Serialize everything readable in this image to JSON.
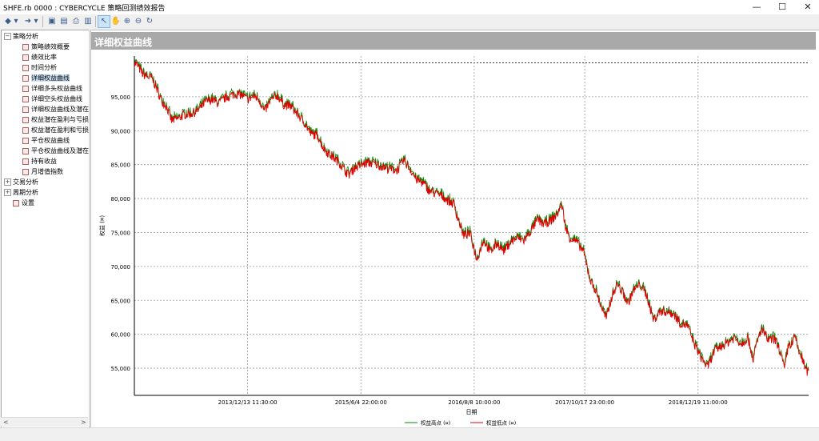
{
  "window": {
    "title": "SHFE.rb 0000 : CYBERCYCLE 策略回测绩效报告",
    "minimize": "—",
    "maximize": "☐",
    "close": "✕"
  },
  "toolbar": {
    "buttons": [
      {
        "name": "back-icon",
        "glyph": "◆"
      },
      {
        "name": "back-dropdown-icon",
        "glyph": "▾"
      },
      {
        "name": "forward-icon",
        "glyph": "➜"
      },
      {
        "name": "forward-dropdown-icon",
        "glyph": "▾"
      },
      {
        "name": "save-icon",
        "glyph": "▣"
      },
      {
        "name": "export-icon",
        "glyph": "▤"
      },
      {
        "name": "print-icon",
        "glyph": "⎙"
      },
      {
        "name": "window-icon",
        "glyph": "▥"
      },
      {
        "name": "pointer-icon",
        "glyph": "↖"
      },
      {
        "name": "pan-hand-icon",
        "glyph": "✋"
      },
      {
        "name": "zoom-in-icon",
        "glyph": "⊕"
      },
      {
        "name": "zoom-out-icon",
        "glyph": "⊖"
      },
      {
        "name": "refresh-icon",
        "glyph": "↻"
      }
    ]
  },
  "tree": {
    "groups": [
      {
        "label": "策略分析",
        "expand": "−",
        "children": [
          "策略绩效概要",
          "绩效比率",
          "时间分析",
          "详细权益曲线",
          "详细多头权益曲线",
          "详细空头权益曲线",
          "详细权益曲线及潜在",
          "权益潜在盈利与亏损",
          "权益潜在盈利和亏损",
          "平仓权益曲线",
          "平仓权益曲线及潜在",
          "持有收益",
          "月增值指数"
        ]
      },
      {
        "label": "交易分析",
        "expand": "+"
      },
      {
        "label": "周期分析",
        "expand": "+"
      }
    ],
    "settings_label": "设置",
    "selected": "详细权益曲线",
    "scroll_left": "<",
    "scroll_right": ">"
  },
  "panel": {
    "header": "详细权益曲线"
  },
  "chart_data": {
    "type": "line",
    "title": "",
    "xlabel": "日期",
    "ylabel": "权益 (¤)",
    "ylim": [
      51000,
      101000
    ],
    "y_ticks": [
      "55,000",
      "60,000",
      "65,000",
      "70,000",
      "75,000",
      "80,000",
      "85,000",
      "90,000",
      "95,000"
    ],
    "x_ticks": [
      "2013/12/13 11:30:00",
      "2015/6/4 22:00:00",
      "2016/8/8 10:00:00",
      "2017/10/17 23:00:00",
      "2018/12/19 11:00:00"
    ],
    "reference_line": 100000,
    "grid": true,
    "legend_position": "bottom-center",
    "colors": {
      "high": "#0a8a0a",
      "low": "#e00000"
    },
    "series": [
      {
        "name": "权益高点 (¤)",
        "color": "#0a8a0a"
      },
      {
        "name": "权益低点 (¤)",
        "color": "#e00000"
      }
    ],
    "x": [
      0,
      0.004,
      0.012,
      0.02,
      0.025,
      0.032,
      0.04,
      0.048,
      0.055,
      0.065,
      0.075,
      0.085,
      0.095,
      0.105,
      0.115,
      0.125,
      0.135,
      0.148,
      0.158,
      0.168,
      0.178,
      0.185,
      0.193,
      0.202,
      0.212,
      0.222,
      0.232,
      0.242,
      0.252,
      0.262,
      0.272,
      0.28,
      0.288,
      0.296,
      0.304,
      0.312,
      0.318,
      0.326,
      0.336,
      0.346,
      0.356,
      0.366,
      0.37,
      0.38,
      0.39,
      0.4,
      0.41,
      0.418,
      0.428,
      0.438,
      0.448,
      0.458,
      0.466,
      0.474,
      0.478,
      0.488,
      0.498,
      0.508,
      0.518,
      0.528,
      0.538,
      0.548,
      0.558,
      0.568,
      0.578,
      0.588,
      0.598,
      0.608,
      0.618,
      0.626,
      0.634,
      0.64,
      0.646,
      0.656,
      0.666,
      0.676,
      0.684,
      0.692,
      0.7,
      0.708,
      0.716,
      0.724,
      0.732,
      0.74,
      0.75,
      0.76,
      0.77,
      0.78,
      0.79,
      0.8,
      0.81,
      0.82,
      0.83,
      0.84,
      0.85,
      0.86,
      0.87,
      0.88,
      0.89,
      0.9,
      0.91,
      0.918,
      0.922,
      0.93,
      0.94,
      0.95,
      0.958,
      0.964,
      0.97,
      0.976,
      0.98,
      0.985,
      0.99,
      0.995,
      1.0
    ],
    "values": [
      100000,
      99700,
      98400,
      97900,
      97800,
      96500,
      94500,
      93500,
      91500,
      91800,
      92400,
      92500,
      93000,
      94200,
      94600,
      94000,
      94800,
      95400,
      95300,
      94600,
      95100,
      94600,
      92800,
      94400,
      95200,
      93800,
      93600,
      92400,
      91200,
      89500,
      89300,
      87500,
      86600,
      86000,
      85300,
      84200,
      83500,
      84500,
      84900,
      85300,
      85100,
      84800,
      84600,
      84300,
      84200,
      85600,
      84200,
      82800,
      82300,
      81100,
      80700,
      80300,
      79600,
      79200,
      77700,
      74600,
      74800,
      71000,
      73900,
      72100,
      73400,
      72300,
      73600,
      74200,
      73800,
      75200,
      76900,
      76200,
      76800,
      77500,
      79100,
      75500,
      74200,
      73600,
      72200,
      68000,
      66500,
      64200,
      62300,
      65500,
      67400,
      66200,
      64500,
      66400,
      67300,
      65700,
      62100,
      63400,
      63300,
      63000,
      61600,
      61300,
      58700,
      56700,
      55100,
      57500,
      58200,
      58800,
      59500,
      58600,
      59500,
      56300,
      58200,
      60800,
      59100,
      59300,
      57400,
      54800,
      58400,
      58600,
      59800,
      57500,
      56600,
      54900,
      54300
    ]
  }
}
